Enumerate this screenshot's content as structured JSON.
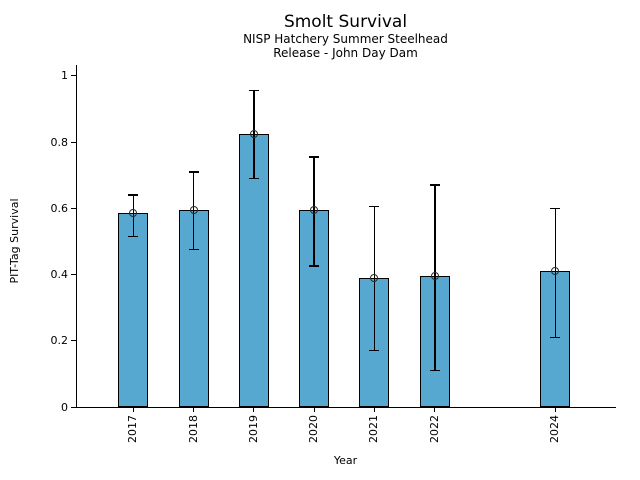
{
  "chart_data": {
    "type": "bar",
    "title": "Smolt Survival",
    "subtitle1": "NISP Hatchery Summer Steelhead",
    "subtitle2": "Release - John Day Dam",
    "xlabel": "Year",
    "ylabel": "PIT-Tag Survival",
    "categories": [
      "2017",
      "2018",
      "2019",
      "2020",
      "2021",
      "2022",
      "2024"
    ],
    "x_numeric": [
      2017,
      2018,
      2019,
      2020,
      2021,
      2022,
      2024
    ],
    "values": [
      0.585,
      0.595,
      0.825,
      0.595,
      0.39,
      0.395,
      0.41
    ],
    "error_low": [
      0.515,
      0.475,
      0.69,
      0.425,
      0.17,
      0.11,
      0.21
    ],
    "error_high": [
      0.64,
      0.71,
      0.955,
      0.755,
      0.605,
      0.67,
      0.6
    ],
    "ytick_labels": [
      "0",
      "0.2",
      "0.4",
      "0.6",
      "0.8",
      "1"
    ],
    "ytick_values": [
      0,
      0.2,
      0.4,
      0.6,
      0.8,
      1
    ],
    "ylim": [
      0,
      1.03
    ],
    "xlim": [
      2016.05,
      2025
    ],
    "bar_width_years": 0.5,
    "missing_years": [
      "2023"
    ],
    "grid": false,
    "legend": null,
    "marker": "open-circle",
    "bar_color": "#56a8d0",
    "edge_color": "#000000",
    "text_color": "#000000"
  }
}
